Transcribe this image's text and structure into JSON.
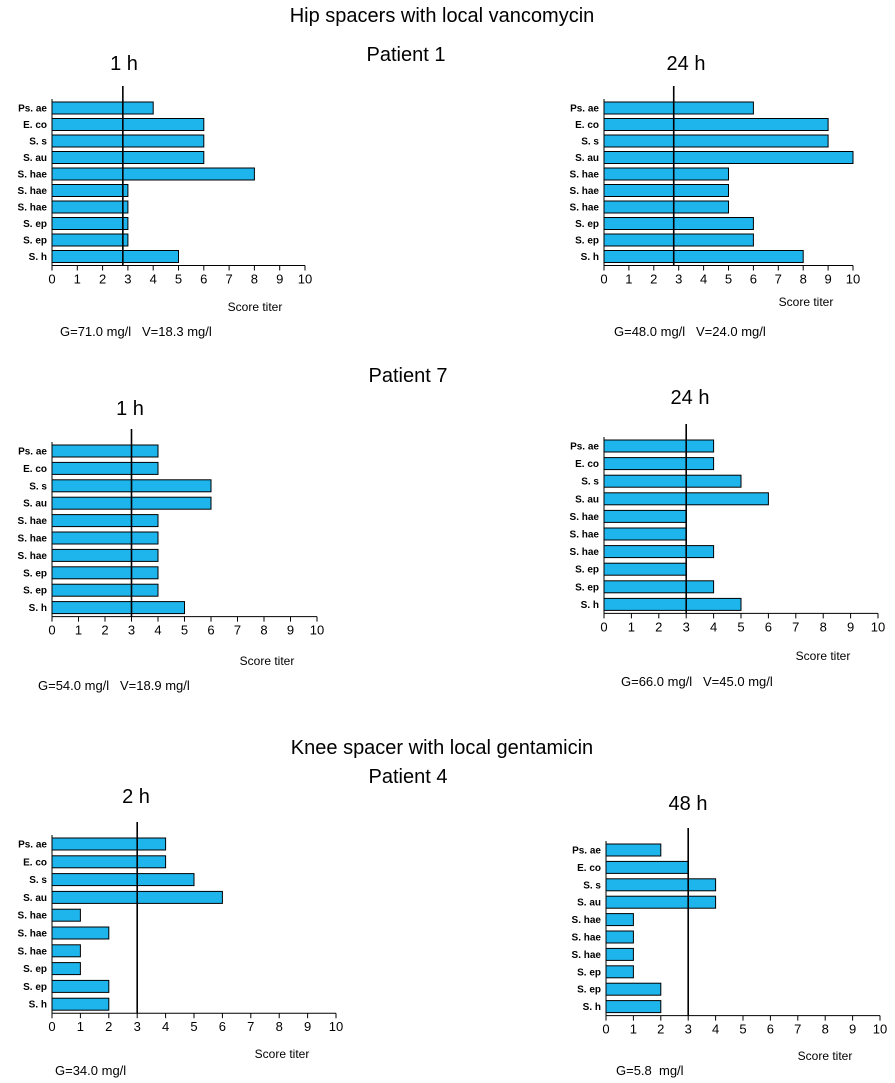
{
  "sections": [
    {
      "title": "Hip spacers with local vancomycin"
    },
    {
      "title": "Knee spacer with local gentamicin"
    }
  ],
  "patients": [
    {
      "label": "Patient 1"
    },
    {
      "label": "Patient 7"
    },
    {
      "label": "Patient 4"
    }
  ],
  "colors": {
    "bar": "#1eb4ec",
    "bar_stroke": "#000000"
  },
  "chart_data": [
    {
      "type": "bar",
      "orientation": "horizontal",
      "title": "1 h",
      "categories": [
        "Ps. ae",
        "E. co",
        "S. s",
        "S. au",
        "S. hae",
        "S. hae",
        "S. hae",
        "S. ep",
        "S. ep",
        "S. h"
      ],
      "values": [
        4,
        6,
        6,
        6,
        8,
        3,
        3,
        3,
        3,
        5
      ],
      "xlabel": "Score titer",
      "xlim": [
        0,
        10
      ],
      "xticks": [
        "0",
        "1",
        "2",
        "3",
        "4",
        "5",
        "6",
        "7",
        "8",
        "9",
        "10"
      ],
      "reference_line": 2.8,
      "concentration": "G=71.0 mg/l   V=18.3 mg/l"
    },
    {
      "type": "bar",
      "orientation": "horizontal",
      "title": "24 h",
      "categories": [
        "Ps. ae",
        "E. co",
        "S. s",
        "S. au",
        "S. hae",
        "S. hae",
        "S. hae",
        "S. ep",
        "S. ep",
        "S. h"
      ],
      "values": [
        6,
        9,
        9,
        10,
        5,
        5,
        5,
        6,
        6,
        8
      ],
      "xlabel": "Score titer",
      "xlim": [
        0,
        10
      ],
      "xticks": [
        "0",
        "1",
        "2",
        "3",
        "4",
        "5",
        "6",
        "7",
        "8",
        "9",
        "10"
      ],
      "reference_line": 2.8,
      "concentration": "G=48.0 mg/l   V=24.0 mg/l"
    },
    {
      "type": "bar",
      "orientation": "horizontal",
      "title": "1 h",
      "categories": [
        "Ps. ae",
        "E. co",
        "S. s",
        "S. au",
        "S. hae",
        "S. hae",
        "S. hae",
        "S. ep",
        "S. ep",
        "S. h"
      ],
      "values": [
        4,
        4,
        6,
        6,
        4,
        4,
        4,
        4,
        4,
        5
      ],
      "xlabel": "Score titer",
      "xlim": [
        0,
        10
      ],
      "xticks": [
        "0",
        "1",
        "2",
        "3",
        "4",
        "5",
        "6",
        "7",
        "8",
        "9",
        "10"
      ],
      "reference_line": 3,
      "concentration": "G=54.0 mg/l   V=18.9 mg/l"
    },
    {
      "type": "bar",
      "orientation": "horizontal",
      "title": "24 h",
      "categories": [
        "Ps. ae",
        "E. co",
        "S. s",
        "S. au",
        "S. hae",
        "S. hae",
        "S. hae",
        "S. ep",
        "S. ep",
        "S. h"
      ],
      "values": [
        4,
        4,
        5,
        6,
        3,
        3,
        4,
        3,
        4,
        5
      ],
      "xlabel": "Score titer",
      "xlim": [
        0,
        10
      ],
      "xticks": [
        "0",
        "1",
        "2",
        "3",
        "4",
        "5",
        "6",
        "7",
        "8",
        "9",
        "10"
      ],
      "reference_line": 3,
      "concentration": "G=66.0 mg/l   V=45.0 mg/l"
    },
    {
      "type": "bar",
      "orientation": "horizontal",
      "title": "2 h",
      "categories": [
        "Ps. ae",
        "E. co",
        "S. s",
        "S. au",
        "S. hae",
        "S. hae",
        "S. hae",
        "S. ep",
        "S. ep",
        "S. h"
      ],
      "values": [
        4,
        4,
        5,
        6,
        1,
        2,
        1,
        1,
        2,
        2
      ],
      "xlabel": "Score titer",
      "xlim": [
        0,
        10
      ],
      "xticks": [
        "0",
        "1",
        "2",
        "3",
        "4",
        "5",
        "6",
        "7",
        "8",
        "9",
        "10"
      ],
      "reference_line": 3,
      "concentration": "G=34.0 mg/l"
    },
    {
      "type": "bar",
      "orientation": "horizontal",
      "title": "48 h",
      "categories": [
        "Ps. ae",
        "E. co",
        "S. s",
        "S. au",
        "S. hae",
        "S. hae",
        "S. hae",
        "S. ep",
        "S. ep",
        "S. h"
      ],
      "values": [
        2,
        3,
        4,
        4,
        1,
        1,
        1,
        1,
        2,
        2
      ],
      "xlabel": "Score titer",
      "xlim": [
        0,
        10
      ],
      "xticks": [
        "0",
        "1",
        "2",
        "3",
        "4",
        "5",
        "6",
        "7",
        "8",
        "9",
        "10"
      ],
      "reference_line": 3,
      "concentration": "G=5.8  mg/l"
    }
  ]
}
